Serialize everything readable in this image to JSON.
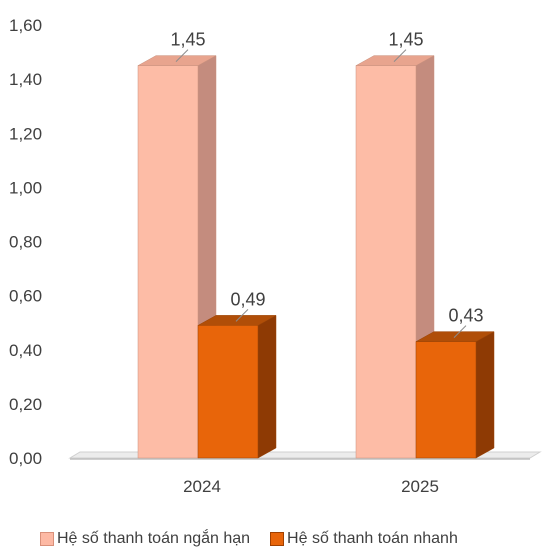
{
  "chart_data": {
    "type": "bar",
    "title": "",
    "xlabel": "",
    "ylabel": "",
    "categories": [
      "2024",
      "2025"
    ],
    "series": [
      {
        "name": "Hệ số thanh toán ngắn hạn",
        "values": [
          1.45,
          1.45
        ],
        "value_labels": [
          "1,45",
          "1,45"
        ],
        "color": "#FDB9A4"
      },
      {
        "name": "Hệ số thanh toán nhanh",
        "values": [
          0.49,
          0.43
        ],
        "value_labels": [
          "0,49",
          "0,43"
        ],
        "color": "#E8650A"
      }
    ],
    "ylim": [
      0,
      1.6
    ],
    "yticks": [
      "0,00",
      "0,20",
      "0,40",
      "0,60",
      "0,80",
      "1,00",
      "1,20",
      "1,40",
      "1,60"
    ],
    "grid": false,
    "legend_position": "bottom",
    "style": "3d-column"
  }
}
